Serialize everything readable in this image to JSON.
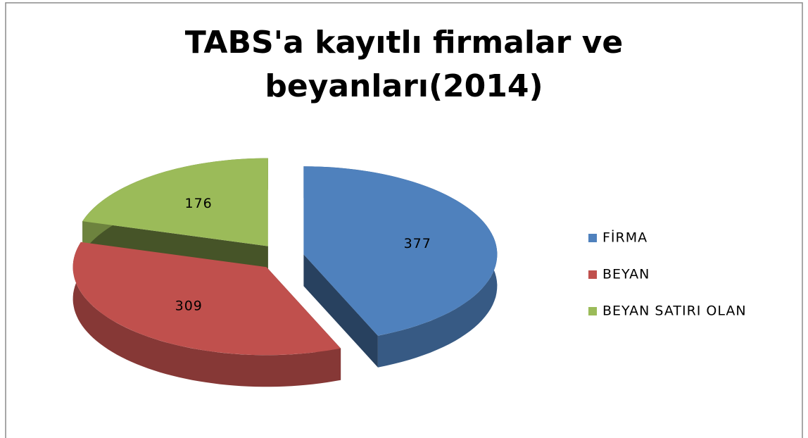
{
  "chart_data": {
    "type": "pie",
    "title": "TABS'a kayıtlı firmalar ve beyanları(2014)",
    "categories": [
      "FİRMA",
      "BEYAN",
      "BEYAN SATIRI OLAN"
    ],
    "values": [
      377,
      309,
      176
    ],
    "colors": [
      "#4f81bd",
      "#c0504d",
      "#9bbb59"
    ],
    "legend": "right"
  }
}
